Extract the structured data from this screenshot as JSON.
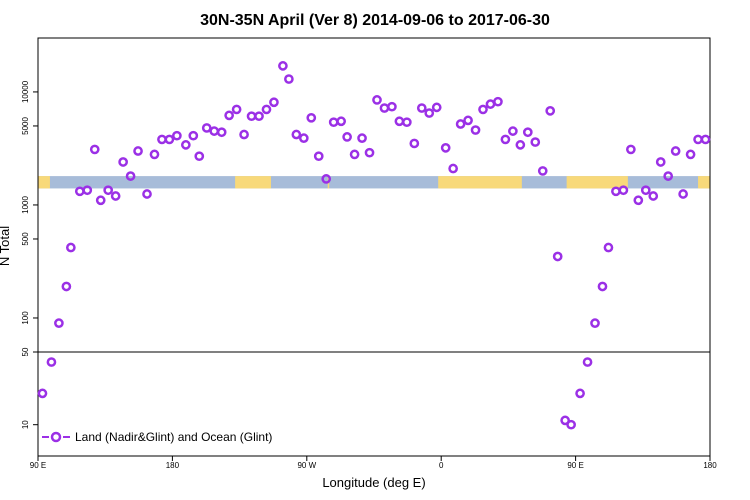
{
  "chart_data": {
    "type": "scatter",
    "title": "30N-35N April (Ver 8)   2014-09-06 to 2017-06-30",
    "xlabel": "Longitude (deg E)",
    "ylabel": "N Total",
    "x_ticks": [
      {
        "value": 90,
        "label": "90 E"
      },
      {
        "value": 180,
        "label": "180"
      },
      {
        "value": 270,
        "label": "90 W"
      },
      {
        "value": 360,
        "label": "0"
      },
      {
        "value": 450,
        "label": "90 E"
      },
      {
        "value": 540,
        "label": "180"
      }
    ],
    "xlim": [
      90,
      540
    ],
    "y_ticks_upper": [
      {
        "value": 100,
        "label": "100"
      },
      {
        "value": 500,
        "label": "500"
      },
      {
        "value": 1000,
        "label": "1000"
      },
      {
        "value": 5000,
        "label": "5000"
      },
      {
        "value": 10000,
        "label": "10000"
      }
    ],
    "y_ticks_lower": [
      {
        "value": 10,
        "label": "10"
      },
      {
        "value": 50,
        "label": "50"
      }
    ],
    "y_scale": "log",
    "ylim_upper": [
      50,
      30000
    ],
    "ylim_lower": [
      5,
      50
    ],
    "grid": false,
    "legend_position": "bottom-left",
    "colors": {
      "points": "#9b30e6",
      "land": "#f8d97a",
      "ocean": "#a7bcd9",
      "frame": "#000000"
    },
    "series": [
      {
        "name": "Land (Nadir&Glint) and Ocean (Glint)",
        "points": [
          [
            93,
            20
          ],
          [
            99,
            40
          ],
          [
            104,
            90
          ],
          [
            109,
            190
          ],
          [
            112,
            420
          ],
          [
            118,
            1320
          ],
          [
            123,
            1350
          ],
          [
            128,
            3100
          ],
          [
            132,
            1100
          ],
          [
            137,
            1350
          ],
          [
            142,
            1200
          ],
          [
            147,
            2400
          ],
          [
            152,
            1800
          ],
          [
            157,
            3000
          ],
          [
            163,
            1250
          ],
          [
            168,
            2800
          ],
          [
            173,
            3800
          ],
          [
            178,
            3800
          ],
          [
            183,
            4100
          ],
          [
            189,
            3400
          ],
          [
            194,
            4100
          ],
          [
            198,
            2700
          ],
          [
            203,
            4800
          ],
          [
            208,
            4500
          ],
          [
            213,
            4400
          ],
          [
            218,
            6200
          ],
          [
            223,
            7000
          ],
          [
            228,
            4200
          ],
          [
            233,
            6100
          ],
          [
            238,
            6100
          ],
          [
            243,
            7000
          ],
          [
            248,
            8100
          ],
          [
            254,
            17000
          ],
          [
            258,
            13000
          ],
          [
            263,
            4200
          ],
          [
            268,
            3900
          ],
          [
            273,
            5900
          ],
          [
            278,
            2700
          ],
          [
            283,
            1700
          ],
          [
            288,
            5400
          ],
          [
            293,
            5500
          ],
          [
            297,
            4000
          ],
          [
            302,
            2800
          ],
          [
            307,
            3900
          ],
          [
            312,
            2900
          ],
          [
            317,
            8500
          ],
          [
            322,
            7200
          ],
          [
            327,
            7400
          ],
          [
            332,
            5500
          ],
          [
            337,
            5400
          ],
          [
            342,
            3500
          ],
          [
            347,
            7200
          ],
          [
            352,
            6500
          ],
          [
            357,
            7300
          ],
          [
            363,
            3200
          ],
          [
            368,
            2100
          ],
          [
            373,
            5200
          ],
          [
            378,
            5600
          ],
          [
            383,
            4600
          ],
          [
            388,
            7000
          ],
          [
            393,
            7800
          ],
          [
            398,
            8200
          ],
          [
            403,
            3800
          ],
          [
            408,
            4500
          ],
          [
            413,
            3400
          ],
          [
            418,
            4400
          ],
          [
            423,
            3600
          ],
          [
            428,
            2000
          ],
          [
            433,
            6800
          ],
          [
            438,
            350
          ],
          [
            443,
            11
          ],
          [
            447,
            10
          ],
          [
            453,
            20
          ],
          [
            458,
            40
          ],
          [
            463,
            90
          ],
          [
            468,
            190
          ],
          [
            472,
            420
          ],
          [
            477,
            1320
          ],
          [
            482,
            1350
          ],
          [
            487,
            3100
          ],
          [
            492,
            1100
          ],
          [
            497,
            1350
          ],
          [
            502,
            1200
          ],
          [
            507,
            2400
          ],
          [
            512,
            1800
          ],
          [
            517,
            3000
          ],
          [
            522,
            1250
          ],
          [
            527,
            2800
          ],
          [
            532,
            3800
          ],
          [
            537,
            3800
          ]
        ]
      }
    ],
    "surface_band": {
      "land": [
        [
          90,
          98
        ],
        [
          222,
          246
        ],
        [
          284,
          285
        ],
        [
          358,
          414
        ],
        [
          444,
          485
        ],
        [
          532,
          540
        ]
      ]
    }
  }
}
